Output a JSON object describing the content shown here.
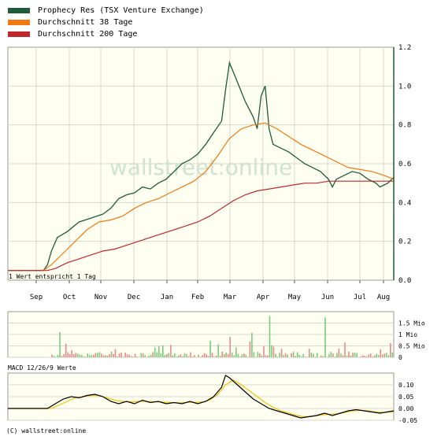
{
  "legend": [
    {
      "label": "Prophecy Res (TSX Venture Exchange)",
      "color": "#1e5b3a"
    },
    {
      "label": "Durchschnitt 38 Tage",
      "color": "#f07a12"
    },
    {
      "label": "Durchschnitt 200 Tage",
      "color": "#c0282d"
    }
  ],
  "watermark": "wallstreet:online",
  "resolution_note": "1 Wert entspricht 1 Tag",
  "macd_label": "MACD 12/26/9 Werte",
  "copyright": "(C) wallstreet:online",
  "colors": {
    "background": "#ffffff",
    "plot_bg": "#fefef1",
    "grid": "#d8d8cf",
    "macd_signal": "#f2c300",
    "macd_line": "#000000",
    "vol_up": "#7ccb7c",
    "vol_down": "#e98a8a"
  },
  "chart_data": [
    {
      "type": "line",
      "name": "price",
      "categories": [
        "Sep",
        "Oct",
        "Nov",
        "Dec",
        "Jan",
        "Feb",
        "Mar",
        "Apr",
        "May",
        "Jun",
        "Jul",
        "Aug"
      ],
      "ylim": [
        0.0,
        1.2
      ],
      "yticks": [
        "0.0",
        "0.2",
        "0.4",
        "0.6",
        "0.8",
        "1.0",
        "1.2"
      ],
      "grid": true,
      "series": [
        {
          "name": "Prophecy Res (TSX Venture Exchange)",
          "color": "#1e5b3a",
          "points": [
            [
              0,
              0.05
            ],
            [
              12,
              0.05
            ],
            [
              18,
              0.05
            ],
            [
              20,
              0.08
            ],
            [
              22,
              0.15
            ],
            [
              25,
              0.22
            ],
            [
              30,
              0.25
            ],
            [
              36,
              0.3
            ],
            [
              42,
              0.32
            ],
            [
              48,
              0.34
            ],
            [
              52,
              0.37
            ],
            [
              56,
              0.42
            ],
            [
              60,
              0.44
            ],
            [
              64,
              0.45
            ],
            [
              68,
              0.48
            ],
            [
              72,
              0.47
            ],
            [
              76,
              0.5
            ],
            [
              80,
              0.52
            ],
            [
              84,
              0.56
            ],
            [
              88,
              0.6
            ],
            [
              92,
              0.62
            ],
            [
              96,
              0.65
            ],
            [
              100,
              0.7
            ],
            [
              104,
              0.76
            ],
            [
              108,
              0.82
            ],
            [
              110,
              0.98
            ],
            [
              112,
              1.12
            ],
            [
              116,
              1.02
            ],
            [
              120,
              0.92
            ],
            [
              124,
              0.84
            ],
            [
              126,
              0.78
            ],
            [
              128,
              0.95
            ],
            [
              130,
              1.0
            ],
            [
              132,
              0.78
            ],
            [
              134,
              0.7
            ],
            [
              138,
              0.68
            ],
            [
              142,
              0.66
            ],
            [
              146,
              0.63
            ],
            [
              150,
              0.6
            ],
            [
              154,
              0.58
            ],
            [
              158,
              0.56
            ],
            [
              162,
              0.52
            ],
            [
              164,
              0.48
            ],
            [
              166,
              0.52
            ],
            [
              170,
              0.54
            ],
            [
              174,
              0.56
            ],
            [
              178,
              0.55
            ],
            [
              182,
              0.52
            ],
            [
              186,
              0.5
            ],
            [
              188,
              0.48
            ],
            [
              192,
              0.5
            ],
            [
              195,
              0.53
            ]
          ]
        },
        {
          "name": "Durchschnitt 38 Tage",
          "color": "#f07a12",
          "points": [
            [
              0,
              0.05
            ],
            [
              18,
              0.05
            ],
            [
              22,
              0.08
            ],
            [
              28,
              0.14
            ],
            [
              34,
              0.2
            ],
            [
              40,
              0.26
            ],
            [
              46,
              0.3
            ],
            [
              52,
              0.31
            ],
            [
              58,
              0.33
            ],
            [
              64,
              0.37
            ],
            [
              70,
              0.4
            ],
            [
              76,
              0.42
            ],
            [
              82,
              0.45
            ],
            [
              88,
              0.48
            ],
            [
              94,
              0.51
            ],
            [
              100,
              0.56
            ],
            [
              106,
              0.64
            ],
            [
              112,
              0.73
            ],
            [
              118,
              0.78
            ],
            [
              124,
              0.8
            ],
            [
              130,
              0.81
            ],
            [
              136,
              0.78
            ],
            [
              142,
              0.74
            ],
            [
              148,
              0.7
            ],
            [
              154,
              0.67
            ],
            [
              160,
              0.64
            ],
            [
              166,
              0.61
            ],
            [
              172,
              0.58
            ],
            [
              178,
              0.57
            ],
            [
              184,
              0.56
            ],
            [
              190,
              0.54
            ],
            [
              195,
              0.52
            ]
          ]
        },
        {
          "name": "Durchschnitt 200 Tage",
          "color": "#c0282d",
          "points": [
            [
              0,
              0.05
            ],
            [
              20,
              0.05
            ],
            [
              24,
              0.06
            ],
            [
              30,
              0.09
            ],
            [
              36,
              0.11
            ],
            [
              42,
              0.13
            ],
            [
              48,
              0.15
            ],
            [
              54,
              0.16
            ],
            [
              60,
              0.18
            ],
            [
              66,
              0.2
            ],
            [
              72,
              0.22
            ],
            [
              78,
              0.24
            ],
            [
              84,
              0.26
            ],
            [
              90,
              0.28
            ],
            [
              96,
              0.3
            ],
            [
              102,
              0.33
            ],
            [
              108,
              0.37
            ],
            [
              114,
              0.41
            ],
            [
              120,
              0.44
            ],
            [
              126,
              0.46
            ],
            [
              132,
              0.47
            ],
            [
              138,
              0.48
            ],
            [
              144,
              0.49
            ],
            [
              150,
              0.5
            ],
            [
              156,
              0.5
            ],
            [
              162,
              0.51
            ],
            [
              168,
              0.51
            ],
            [
              174,
              0.51
            ],
            [
              180,
              0.51
            ],
            [
              186,
              0.51
            ],
            [
              195,
              0.51
            ]
          ]
        }
      ]
    },
    {
      "type": "bar",
      "name": "volume",
      "ylim": [
        0,
        2
      ],
      "yticks": [
        "0",
        "0.5 Mio",
        "1 Mio",
        "1.5 Mio"
      ]
    },
    {
      "type": "line",
      "name": "macd",
      "ylim": [
        -0.05,
        0.15
      ],
      "yticks": [
        "-0.05",
        "0.00",
        "0.05",
        "0.10"
      ],
      "series": [
        {
          "name": "MACD",
          "color": "#000000",
          "points": [
            [
              0,
              0
            ],
            [
              20,
              0
            ],
            [
              24,
              0.02
            ],
            [
              28,
              0.04
            ],
            [
              32,
              0.05
            ],
            [
              36,
              0.045
            ],
            [
              40,
              0.055
            ],
            [
              44,
              0.06
            ],
            [
              48,
              0.05
            ],
            [
              52,
              0.03
            ],
            [
              56,
              0.02
            ],
            [
              60,
              0.03
            ],
            [
              64,
              0.02
            ],
            [
              68,
              0.035
            ],
            [
              72,
              0.025
            ],
            [
              76,
              0.03
            ],
            [
              80,
              0.02
            ],
            [
              84,
              0.025
            ],
            [
              88,
              0.02
            ],
            [
              92,
              0.03
            ],
            [
              96,
              0.02
            ],
            [
              100,
              0.03
            ],
            [
              104,
              0.05
            ],
            [
              108,
              0.09
            ],
            [
              110,
              0.14
            ],
            [
              112,
              0.13
            ],
            [
              116,
              0.1
            ],
            [
              120,
              0.07
            ],
            [
              124,
              0.04
            ],
            [
              128,
              0.02
            ],
            [
              132,
              0.0
            ],
            [
              136,
              -0.01
            ],
            [
              140,
              -0.02
            ],
            [
              144,
              -0.03
            ],
            [
              148,
              -0.04
            ],
            [
              152,
              -0.035
            ],
            [
              156,
              -0.03
            ],
            [
              160,
              -0.02
            ],
            [
              164,
              -0.03
            ],
            [
              168,
              -0.02
            ],
            [
              172,
              -0.01
            ],
            [
              176,
              -0.005
            ],
            [
              180,
              -0.01
            ],
            [
              184,
              -0.015
            ],
            [
              188,
              -0.02
            ],
            [
              195,
              -0.01
            ]
          ]
        },
        {
          "name": "Signal",
          "color": "#f2c300",
          "points": [
            [
              0,
              0
            ],
            [
              22,
              0
            ],
            [
              26,
              0.015
            ],
            [
              30,
              0.03
            ],
            [
              34,
              0.045
            ],
            [
              38,
              0.05
            ],
            [
              42,
              0.055
            ],
            [
              46,
              0.055
            ],
            [
              50,
              0.045
            ],
            [
              54,
              0.035
            ],
            [
              58,
              0.03
            ],
            [
              62,
              0.028
            ],
            [
              66,
              0.03
            ],
            [
              70,
              0.03
            ],
            [
              74,
              0.028
            ],
            [
              78,
              0.027
            ],
            [
              82,
              0.025
            ],
            [
              86,
              0.024
            ],
            [
              90,
              0.025
            ],
            [
              94,
              0.026
            ],
            [
              98,
              0.027
            ],
            [
              102,
              0.035
            ],
            [
              106,
              0.06
            ],
            [
              110,
              0.1
            ],
            [
              114,
              0.12
            ],
            [
              118,
              0.1
            ],
            [
              122,
              0.075
            ],
            [
              126,
              0.05
            ],
            [
              130,
              0.025
            ],
            [
              134,
              0.005
            ],
            [
              138,
              -0.01
            ],
            [
              142,
              -0.02
            ],
            [
              146,
              -0.03
            ],
            [
              150,
              -0.035
            ],
            [
              154,
              -0.033
            ],
            [
              158,
              -0.028
            ],
            [
              162,
              -0.025
            ],
            [
              166,
              -0.023
            ],
            [
              170,
              -0.017
            ],
            [
              174,
              -0.01
            ],
            [
              178,
              -0.008
            ],
            [
              182,
              -0.01
            ],
            [
              186,
              -0.015
            ],
            [
              190,
              -0.017
            ],
            [
              195,
              -0.014
            ]
          ]
        }
      ]
    }
  ]
}
